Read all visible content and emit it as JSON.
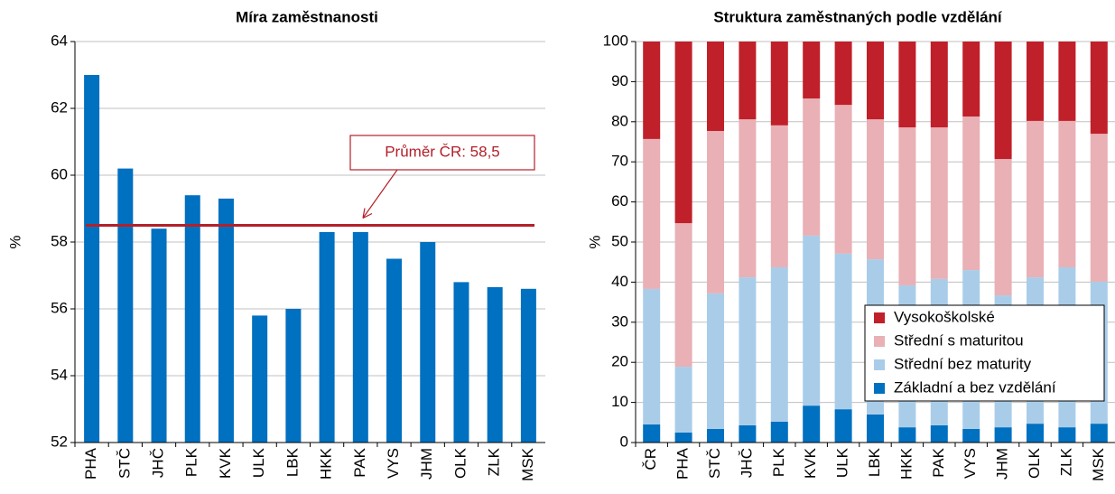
{
  "chart_data": [
    {
      "type": "bar",
      "title": "Míra zaměstnanosti",
      "ylabel": "%",
      "categories": [
        "PHA",
        "STČ",
        "JHČ",
        "PLK",
        "KVK",
        "ULK",
        "LBK",
        "HKK",
        "PAK",
        "VYS",
        "JHM",
        "OLK",
        "ZLK",
        "MSK"
      ],
      "values": [
        63.0,
        60.2,
        58.4,
        59.4,
        59.3,
        55.8,
        56.0,
        58.3,
        58.3,
        57.5,
        58.0,
        56.8,
        56.65,
        56.6
      ],
      "color": "#0070c0",
      "ylim": [
        52,
        64
      ],
      "yticks": [
        52,
        54,
        56,
        58,
        60,
        62,
        64
      ],
      "grid": true,
      "average": 58.5,
      "average_color": "#b3202a",
      "annotation": "Průměr ČR: 58,5"
    },
    {
      "type": "stacked_bar",
      "title": "Struktura zaměstnaných podle vzdělání",
      "ylabel": "%",
      "categories": [
        "ČR",
        "PHA",
        "STČ",
        "JHČ",
        "PLK",
        "KVK",
        "ULK",
        "LBK",
        "HKK",
        "PAK",
        "VYS",
        "JHM",
        "OLK",
        "ZLK",
        "MSK"
      ],
      "series": [
        {
          "name": "Základní a bez vzdělání",
          "color": "#0070c0",
          "values": [
            4.5,
            2.5,
            3.4,
            4.3,
            5.2,
            9.2,
            8.3,
            7.0,
            3.8,
            4.3,
            3.4,
            3.8,
            4.7,
            3.8,
            4.7
          ]
        },
        {
          "name": "Střední bez maturity",
          "color": "#a9cde9",
          "values": [
            33.8,
            16.4,
            33.8,
            36.9,
            38.5,
            42.4,
            38.8,
            38.7,
            35.4,
            36.5,
            39.6,
            32.9,
            36.5,
            39.9,
            35.4
          ]
        },
        {
          "name": "Střední s maturitou",
          "color": "#e9b0b5",
          "values": [
            37.4,
            35.8,
            40.5,
            39.4,
            35.4,
            34.2,
            37.1,
            34.9,
            39.4,
            37.8,
            38.3,
            34.0,
            39.0,
            36.5,
            36.9
          ]
        },
        {
          "name": "Vysokoškolské",
          "color": "#c0202a",
          "values": [
            24.3,
            45.3,
            22.3,
            19.4,
            20.9,
            14.2,
            15.8,
            19.4,
            21.4,
            21.4,
            18.7,
            29.3,
            19.8,
            19.8,
            23.0
          ]
        }
      ],
      "ylim": [
        0,
        100
      ],
      "yticks": [
        0,
        10,
        20,
        30,
        40,
        50,
        60,
        70,
        80,
        90,
        100
      ],
      "grid": true,
      "legend": "lower right"
    }
  ]
}
